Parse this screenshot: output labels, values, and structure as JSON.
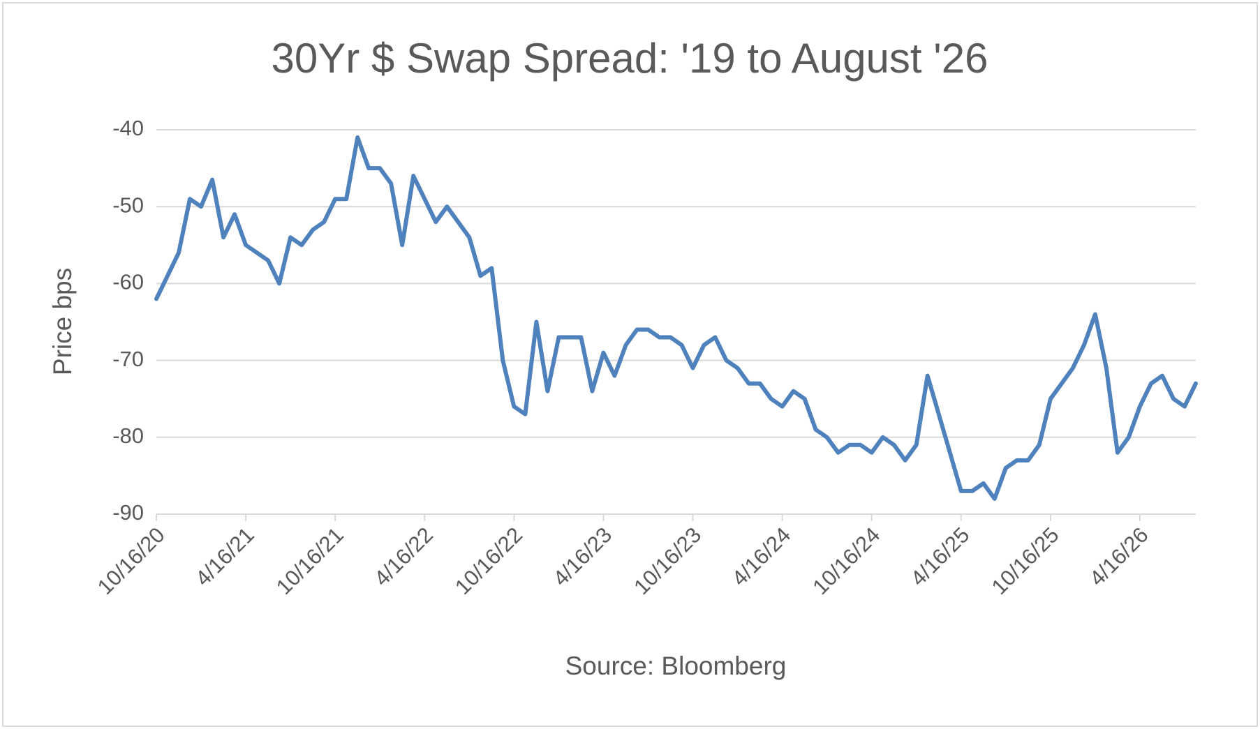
{
  "chart_data": {
    "type": "line",
    "title": "30Yr $ Swap Spread: '19 to August '26",
    "x_label": "Source: Bloomberg",
    "y_label": "Price bps",
    "categories": [
      "10/16/20",
      null,
      null,
      null,
      null,
      null,
      null,
      null,
      "4/16/21",
      null,
      null,
      null,
      null,
      null,
      null,
      null,
      "10/16/21",
      null,
      null,
      null,
      null,
      null,
      null,
      null,
      "4/16/22",
      null,
      null,
      null,
      null,
      null,
      null,
      null,
      "10/16/22",
      null,
      null,
      null,
      null,
      null,
      null,
      null,
      "4/16/23",
      null,
      null,
      null,
      null,
      null,
      null,
      null,
      "10/16/23",
      null,
      null,
      null,
      null,
      null,
      null,
      null,
      "4/16/24",
      null,
      null,
      null,
      null,
      null,
      null,
      null,
      "10/16/24",
      null,
      null,
      null,
      null,
      null,
      null,
      null,
      "4/16/25",
      null,
      null,
      null,
      null,
      null,
      null,
      null,
      "10/16/25",
      null,
      null,
      null,
      null,
      null,
      null,
      null,
      "4/16/26",
      null,
      null,
      null,
      null,
      null
    ],
    "values": [
      -62,
      -59,
      -56,
      -49,
      -50,
      -46.5,
      -54,
      -51,
      -55,
      -56,
      -57,
      -60,
      -54,
      -55,
      -53,
      -52,
      -49,
      -49,
      -41,
      -45,
      -45,
      -47,
      -55,
      -46,
      -49,
      -52,
      -50,
      -52,
      -54,
      -59,
      -58,
      -70,
      -76,
      -77,
      -65,
      -74,
      -67,
      -67,
      -67,
      -74,
      -69,
      -72,
      -68,
      -66,
      -66,
      -67,
      -67,
      -68,
      -71,
      -68,
      -67,
      -70,
      -71,
      -73,
      -73,
      -75,
      -76,
      -74,
      -75,
      -79,
      -80,
      -82,
      -81,
      -81,
      -82,
      -80,
      -81,
      -83,
      -81,
      -72,
      -77,
      -82,
      -87,
      -87,
      -86,
      -88,
      -84,
      -83,
      -83,
      -81,
      -75,
      -73,
      -71,
      -68,
      -64,
      -71,
      -82,
      -80,
      -76,
      -73,
      -72,
      -75,
      -76,
      -73
    ],
    "color": "#4f81bd",
    "ylim": [
      -90,
      -40
    ],
    "yticks": [
      -90,
      -80,
      -70,
      -60,
      -50,
      -40
    ],
    "grid": true
  }
}
